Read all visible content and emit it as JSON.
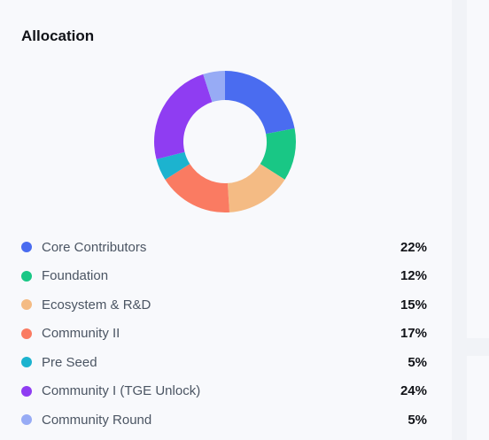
{
  "panel": {
    "title": "Allocation"
  },
  "chart_data": {
    "type": "pie",
    "style": "donut",
    "title": "Allocation",
    "categories": [
      "Core Contributors",
      "Foundation",
      "Ecosystem & R&D",
      "Community II",
      "Pre Seed",
      "Community I (TGE Unlock)",
      "Community Round"
    ],
    "values": [
      22,
      12,
      15,
      17,
      5,
      24,
      5
    ],
    "labels": [
      "22%",
      "12%",
      "15%",
      "17%",
      "5%",
      "24%",
      "5%"
    ],
    "colors": [
      "#4a6cf0",
      "#19c785",
      "#f4bb84",
      "#fa7b62",
      "#1cb3cf",
      "#8f3df2",
      "#97abf5"
    ],
    "unit": "%",
    "start": "top",
    "direction": "clockwise"
  }
}
